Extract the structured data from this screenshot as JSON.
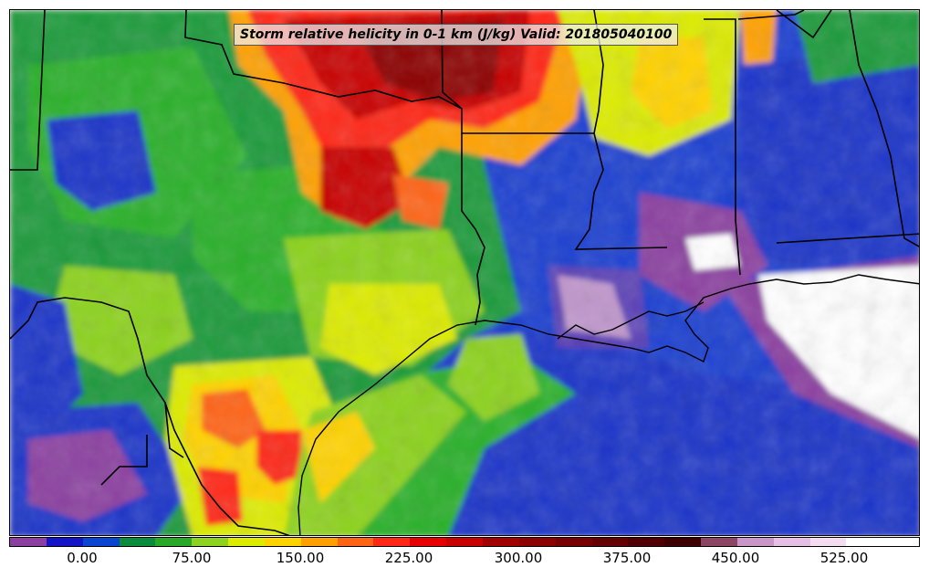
{
  "title": "Storm relative helicity in 0-1 km (J/kg) Valid: 201805040100",
  "colorbar": {
    "colors": [
      "#8b3fa0",
      "#1414c8",
      "#0a46d2",
      "#0a8c3c",
      "#28aa28",
      "#8cd21e",
      "#dceb00",
      "#ffd200",
      "#ffa000",
      "#ff6414",
      "#ff2814",
      "#e60000",
      "#c80000",
      "#a00000",
      "#8c0000",
      "#780000",
      "#640000",
      "#500000",
      "#3c0000",
      "#8c4664",
      "#c896c8",
      "#e6bee6",
      "#f5dcf0",
      "#ffffff",
      "#ffffff"
    ],
    "tick_labels": [
      "0.00",
      "75.00",
      "150.00",
      "225.00",
      "300.00",
      "375.00",
      "450.00",
      "525.00"
    ]
  }
}
